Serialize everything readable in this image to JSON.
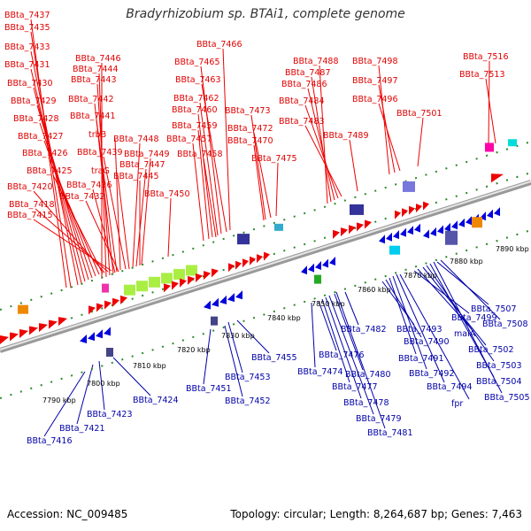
{
  "title": "Bradyrhizobium sp. BTAi1, complete genome",
  "footer": {
    "accession": "Accession: NC_009485",
    "topology": "Topology: circular; Length: 8,264,687 bp; Genes: 7,463"
  },
  "ticks": [
    "7790 kbp",
    "7800 kbp",
    "7810 kbp",
    "7820 kbp",
    "7830 kbp",
    "7840 kbp",
    "7850 kbp",
    "7860 kbp",
    "7870 kbp",
    "7880 kbp",
    "7890 kbp"
  ],
  "top_labels": [
    "BBta_7437",
    "BBta_7435",
    "BBta_7433",
    "BBta_7431",
    "BBta_7430",
    "BBta_7429",
    "BBta_7428",
    "BBta_7427",
    "BBta_7426",
    "BBta_7425",
    "BBta_7420",
    "BBta_7418",
    "BBta_7415",
    "BBta_7446",
    "BBta_7444",
    "BBta_7443",
    "BBta_7442",
    "BBta_7441",
    "trbB",
    "BBta_7448",
    "BBta_7439",
    "BBta_7449",
    "traG",
    "BBta_7447",
    "BBta_7445",
    "BBta_7436",
    "BBta_7432",
    "BBta_7450",
    "BBta_7466",
    "BBta_7465",
    "BBta_7463",
    "BBta_7462",
    "BBta_7460",
    "BBta_7459",
    "BBta_7457",
    "BBta_7458",
    "BBta_7473",
    "BBta_7472",
    "BBta_7470",
    "BBta_7475",
    "BBta_7488",
    "BBta_7487",
    "BBta_7486",
    "BBta_7484",
    "BBta_7483",
    "BBta_7489",
    "BBta_7498",
    "BBta_7497",
    "BBta_7496",
    "BBta_7501",
    "BBta_7516",
    "BBta_7513"
  ],
  "bottom_labels": [
    "BBta_7416",
    "BBta_7421",
    "BBta_7423",
    "BBta_7424",
    "BBta_7451",
    "BBta_7452",
    "BBta_7453",
    "BBta_7455",
    "BBta_7474",
    "BBta_7476",
    "BBta_7477",
    "BBta_7478",
    "BBta_7479",
    "BBta_7480",
    "BBta_7481",
    "BBta_7482",
    "BBta_7493",
    "BBta_7490",
    "BBta_7491",
    "BBta_7492",
    "BBta_7494",
    "fpr",
    "BBta_7499",
    "maiA",
    "BBta_7502",
    "BBta_7503",
    "BBta_7504",
    "BBta_7505",
    "BBta_7507",
    "BBta_7508"
  ],
  "colors": {
    "forward": "#ee0000",
    "reverse": "#0000dd",
    "backbone": "#888888",
    "tick": "#2a8a2a"
  }
}
